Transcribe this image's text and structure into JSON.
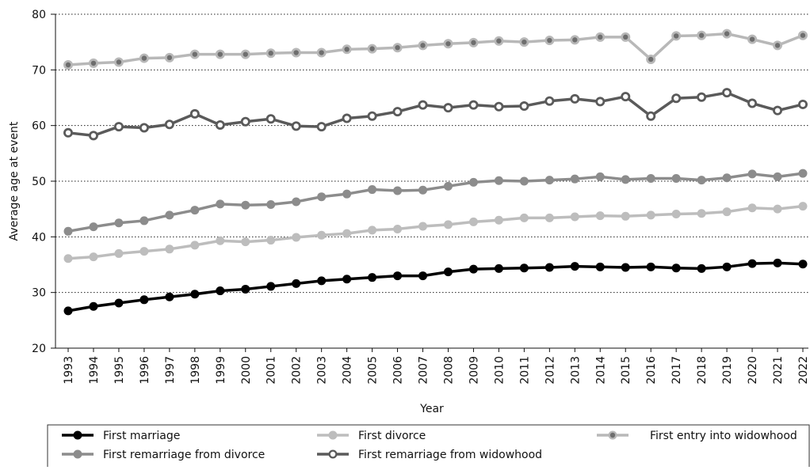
{
  "chart_data": {
    "type": "line",
    "y_label": "Average age at  event",
    "x_label": "Year",
    "categories": [
      "1993",
      "1994",
      "1995",
      "1996",
      "1997",
      "1998",
      "1999",
      "2000",
      "2001",
      "2002",
      "2003",
      "2004",
      "2005",
      "2006",
      "2007",
      "2008",
      "2009",
      "2010",
      "2011",
      "2012",
      "2013",
      "2014",
      "2015",
      "2016",
      "2017",
      "2018",
      "2019",
      "2020",
      "2021",
      "2022"
    ],
    "ylim": [
      20,
      80
    ],
    "yticks": [
      20,
      30,
      40,
      50,
      60,
      70,
      80
    ],
    "grid": true,
    "series": [
      {
        "name": "First marriage",
        "color": "#000000",
        "marker_color": "#000000",
        "values": [
          26.7,
          27.5,
          28.1,
          28.7,
          29.2,
          29.7,
          30.3,
          30.6,
          31.1,
          31.6,
          32.1,
          32.4,
          32.7,
          33.0,
          33.0,
          33.7,
          34.2,
          34.3,
          34.4,
          34.5,
          34.7,
          34.6,
          34.5,
          34.6,
          34.4,
          34.3,
          34.6,
          35.2,
          35.3,
          35.1
        ]
      },
      {
        "name": "First divorce",
        "color": "#bdbdbd",
        "marker_color": "#bdbdbd",
        "values": [
          36.1,
          36.4,
          37.0,
          37.4,
          37.8,
          38.5,
          39.3,
          39.1,
          39.4,
          39.9,
          40.3,
          40.6,
          41.2,
          41.4,
          41.9,
          42.2,
          42.7,
          43.0,
          43.4,
          43.4,
          43.6,
          43.8,
          43.7,
          43.9,
          44.1,
          44.2,
          44.5,
          45.2,
          45.0,
          45.5
        ]
      },
      {
        "name": "First entry into widowhood",
        "color": "#b8b8b8",
        "marker_color": "#6e6e6e",
        "values": [
          70.9,
          71.2,
          71.4,
          72.1,
          72.2,
          72.8,
          72.8,
          72.8,
          73.0,
          73.1,
          73.1,
          73.7,
          73.8,
          74.0,
          74.4,
          74.7,
          74.9,
          75.2,
          75.0,
          75.3,
          75.4,
          75.9,
          75.9,
          71.9,
          76.1,
          76.2,
          76.5,
          75.5,
          74.4,
          76.2
        ]
      },
      {
        "name": "First remarriage from divorce",
        "color": "#8c8c8c",
        "marker_color": "#8c8c8c",
        "values": [
          41.0,
          41.8,
          42.5,
          42.9,
          43.9,
          44.8,
          45.9,
          45.7,
          45.8,
          46.3,
          47.2,
          47.7,
          48.5,
          48.3,
          48.4,
          49.1,
          49.8,
          50.1,
          50.0,
          50.2,
          50.4,
          50.8,
          50.3,
          50.5,
          50.5,
          50.2,
          50.6,
          51.3,
          50.8,
          51.4
        ]
      },
      {
        "name": "First remarriage from widowhood",
        "color": "#5a5a5a",
        "marker_color": "#ffffff",
        "values": [
          58.7,
          58.2,
          59.8,
          59.6,
          60.2,
          62.1,
          60.1,
          60.7,
          61.2,
          59.9,
          59.8,
          61.3,
          61.7,
          62.5,
          63.7,
          63.2,
          63.7,
          63.4,
          63.5,
          64.4,
          64.8,
          64.3,
          65.2,
          61.7,
          64.9,
          65.1,
          65.9,
          64.0,
          62.7,
          63.8
        ]
      }
    ]
  }
}
